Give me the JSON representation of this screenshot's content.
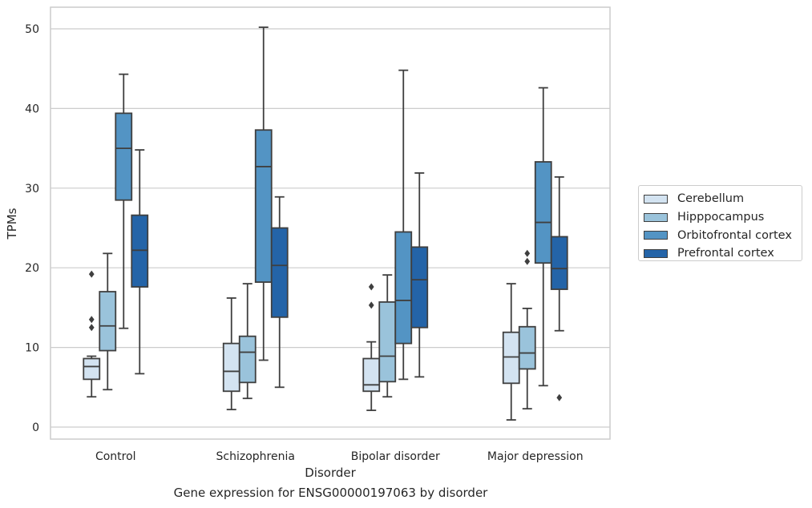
{
  "chart_data": {
    "type": "box",
    "title": "",
    "caption": "Gene expression for ENSG00000197063 by disorder",
    "xlabel": "Disorder",
    "ylabel": "TPMs",
    "ylim": [
      -1.5,
      52.5
    ],
    "yticks": [
      0,
      10,
      20,
      30,
      40,
      50
    ],
    "grid": "horizontal",
    "legend_position": "right",
    "categories": [
      "Control",
      "Schizophrenia",
      "Bipolar disorder",
      "Major depression"
    ],
    "series": [
      {
        "name": "Cerebellum",
        "color": "#d3e3f1",
        "boxes": [
          {
            "whisker_low": 3.8,
            "q1": 6.0,
            "median": 7.6,
            "q3": 8.6,
            "whisker_high": 8.9,
            "outliers": [
              12.5,
              13.5,
              19.2
            ]
          },
          {
            "whisker_low": 2.2,
            "q1": 4.5,
            "median": 7.0,
            "q3": 10.5,
            "whisker_high": 16.2,
            "outliers": []
          },
          {
            "whisker_low": 2.1,
            "q1": 4.5,
            "median": 5.3,
            "q3": 8.6,
            "whisker_high": 10.7,
            "outliers": [
              15.3,
              17.6
            ]
          },
          {
            "whisker_low": 0.9,
            "q1": 5.5,
            "median": 8.8,
            "q3": 11.9,
            "whisker_high": 18.0,
            "outliers": []
          }
        ]
      },
      {
        "name": "Hipppocampus",
        "color": "#9ac3db",
        "boxes": [
          {
            "whisker_low": 4.7,
            "q1": 9.6,
            "median": 12.7,
            "q3": 17.0,
            "whisker_high": 21.8,
            "outliers": []
          },
          {
            "whisker_low": 3.6,
            "q1": 5.6,
            "median": 9.4,
            "q3": 11.4,
            "whisker_high": 18.0,
            "outliers": []
          },
          {
            "whisker_low": 3.8,
            "q1": 5.7,
            "median": 8.9,
            "q3": 15.7,
            "whisker_high": 19.1,
            "outliers": []
          },
          {
            "whisker_low": 2.3,
            "q1": 7.3,
            "median": 9.3,
            "q3": 12.6,
            "whisker_high": 14.9,
            "outliers": [
              20.8,
              21.8
            ]
          }
        ]
      },
      {
        "name": "Orbitofrontal cortex",
        "color": "#5394c4",
        "boxes": [
          {
            "whisker_low": 12.4,
            "q1": 28.5,
            "median": 35.0,
            "q3": 39.4,
            "whisker_high": 44.3,
            "outliers": []
          },
          {
            "whisker_low": 8.4,
            "q1": 18.2,
            "median": 32.7,
            "q3": 37.3,
            "whisker_high": 50.2,
            "outliers": []
          },
          {
            "whisker_low": 6.0,
            "q1": 10.5,
            "median": 15.9,
            "q3": 24.5,
            "whisker_high": 44.8,
            "outliers": []
          },
          {
            "whisker_low": 5.2,
            "q1": 20.6,
            "median": 25.7,
            "q3": 33.3,
            "whisker_high": 42.6,
            "outliers": []
          }
        ]
      },
      {
        "name": "Prefrontal cortex",
        "color": "#2464a8",
        "boxes": [
          {
            "whisker_low": 6.7,
            "q1": 17.6,
            "median": 22.2,
            "q3": 26.6,
            "whisker_high": 34.8,
            "outliers": []
          },
          {
            "whisker_low": 5.0,
            "q1": 13.8,
            "median": 20.3,
            "q3": 25.0,
            "whisker_high": 28.9,
            "outliers": []
          },
          {
            "whisker_low": 6.3,
            "q1": 12.5,
            "median": 18.5,
            "q3": 22.6,
            "whisker_high": 31.9,
            "outliers": []
          },
          {
            "whisker_low": 12.1,
            "q1": 17.3,
            "median": 19.9,
            "q3": 23.9,
            "whisker_high": 31.4,
            "outliers": [
              3.7
            ]
          }
        ]
      }
    ]
  }
}
